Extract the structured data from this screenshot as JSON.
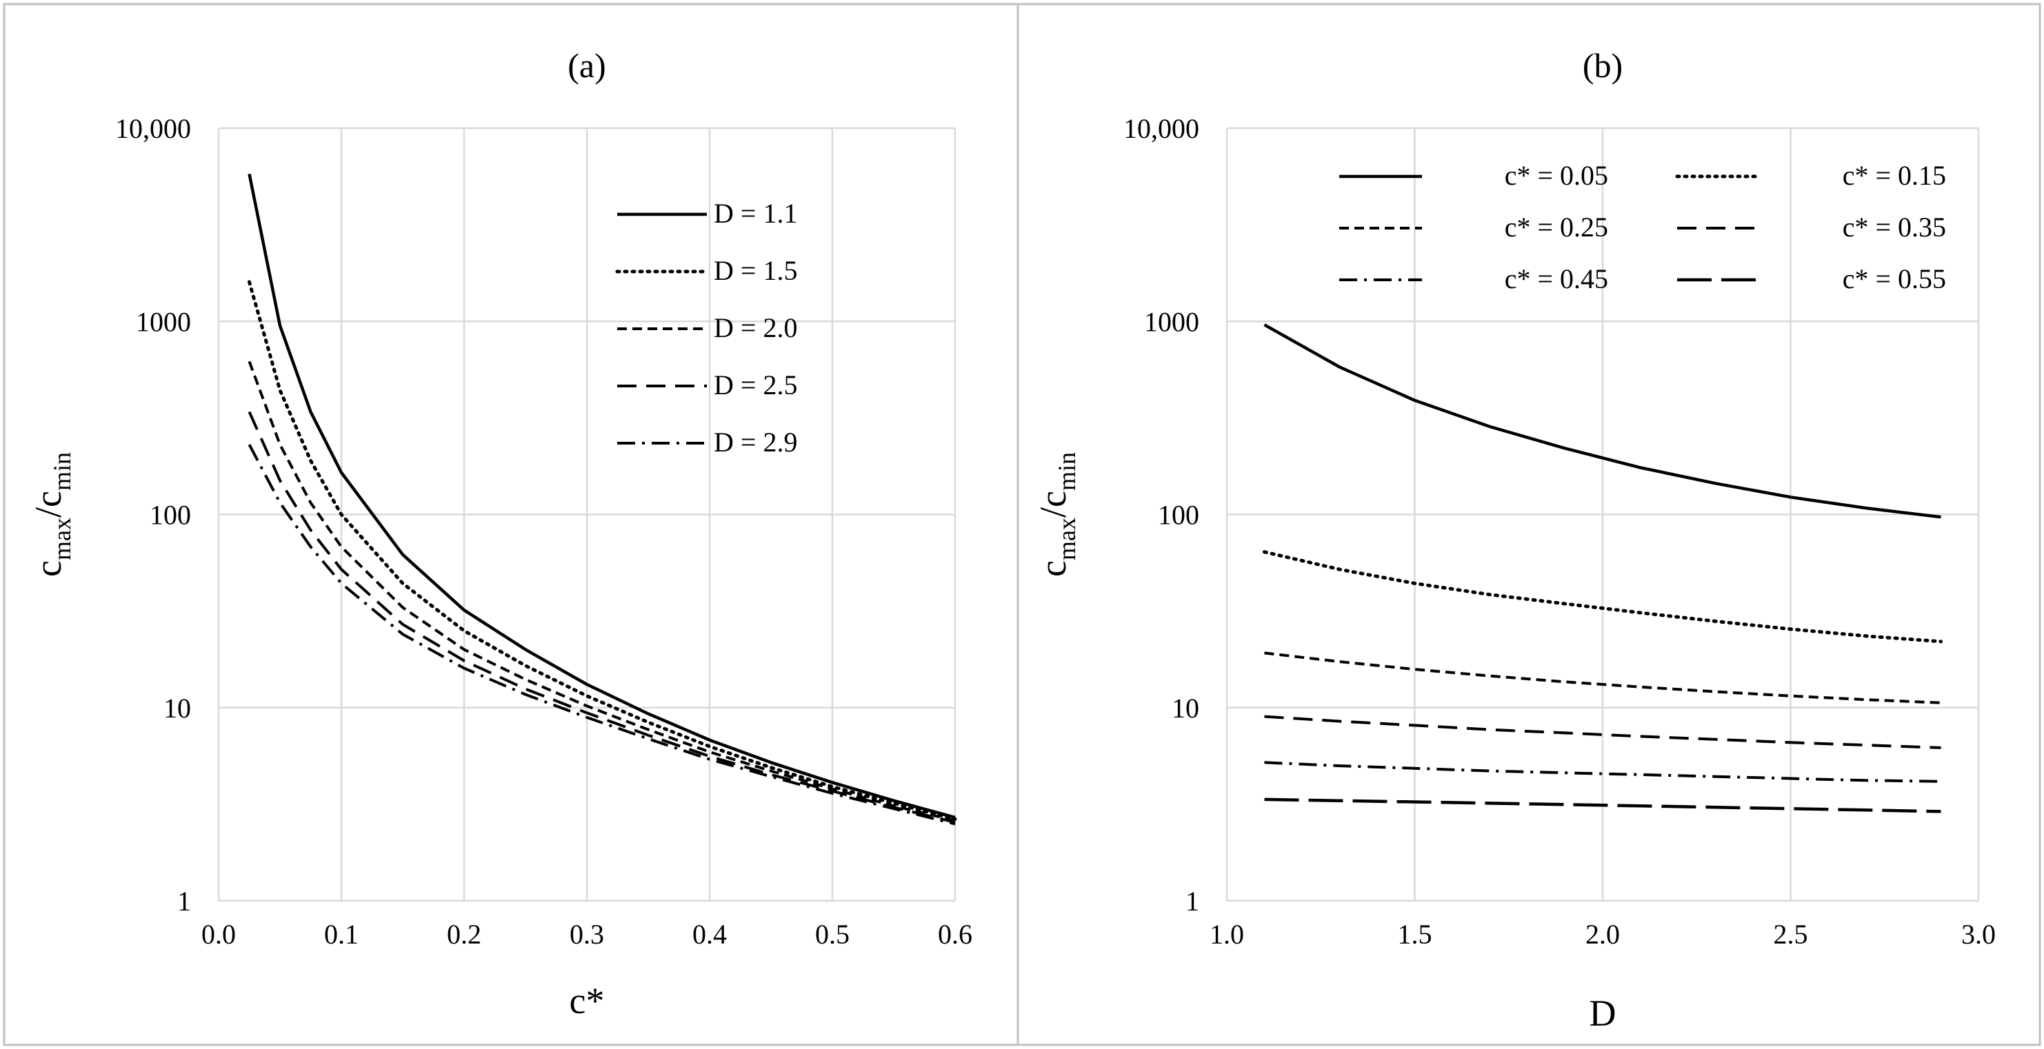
{
  "chart_data": [
    {
      "type": "line",
      "title": "(a)",
      "xlabel": "c*",
      "ylabel": {
        "base": "c",
        "sub1": "max",
        "slash": "/",
        "base2": "c",
        "sub2": "min"
      },
      "xscale": "linear",
      "yscale": "log",
      "xlim": [
        0.0,
        0.6
      ],
      "ylim": [
        1,
        10000
      ],
      "xticks": [
        "0.0",
        "0.1",
        "0.2",
        "0.3",
        "0.4",
        "0.5",
        "0.6"
      ],
      "yticks": [
        "1",
        "10",
        "100",
        "1000",
        "10,000"
      ],
      "grid": true,
      "legend_position": "top-right",
      "x": [
        0.025,
        0.05,
        0.075,
        0.1,
        0.15,
        0.2,
        0.25,
        0.3,
        0.35,
        0.4,
        0.45,
        0.5,
        0.55,
        0.6
      ],
      "series": [
        {
          "name": "D = 1.1",
          "style": "solid",
          "values": [
            5800,
            950,
            340,
            165,
            62,
            32,
            20,
            13.2,
            9.3,
            6.8,
            5.2,
            4.1,
            3.3,
            2.7
          ]
        },
        {
          "name": "D = 1.5",
          "style": "dotted",
          "values": [
            1600,
            440,
            190,
            100,
            44,
            25,
            16.5,
            11.5,
            8.4,
            6.3,
            4.9,
            3.9,
            3.2,
            2.65
          ]
        },
        {
          "name": "D = 2.0",
          "style": "dashed",
          "values": [
            620,
            230,
            115,
            68,
            33,
            20,
            14,
            10.2,
            7.7,
            5.9,
            4.7,
            3.8,
            3.1,
            2.6
          ]
        },
        {
          "name": "D = 2.5",
          "style": "longdash",
          "values": [
            340,
            150,
            83,
            52,
            27,
            17.5,
            12.5,
            9.4,
            7.2,
            5.6,
            4.5,
            3.7,
            3.05,
            2.55
          ]
        },
        {
          "name": "D = 2.9",
          "style": "dashdot",
          "values": [
            230,
            115,
            68,
            44,
            24,
            16,
            11.7,
            8.9,
            6.9,
            5.4,
            4.4,
            3.6,
            3.0,
            2.5
          ]
        }
      ]
    },
    {
      "type": "line",
      "title": "(b)",
      "xlabel": "D",
      "ylabel": {
        "base": "c",
        "sub1": "max",
        "slash": "/",
        "base2": "c",
        "sub2": "min"
      },
      "xscale": "linear",
      "yscale": "log",
      "xlim": [
        1.0,
        3.0
      ],
      "ylim": [
        1,
        10000
      ],
      "xticks": [
        "1.0",
        "1.5",
        "2.0",
        "2.5",
        "3.0"
      ],
      "yticks": [
        "1",
        "10",
        "100",
        "1000",
        "10,000"
      ],
      "grid": true,
      "legend_position": "top",
      "x": [
        1.1,
        1.3,
        1.5,
        1.7,
        1.9,
        2.1,
        2.3,
        2.5,
        2.7,
        2.9
      ],
      "series": [
        {
          "name": "c* = 0.05",
          "style": "solid",
          "values": [
            960,
            580,
            390,
            285,
            220,
            175,
            145,
            123,
            108,
            97
          ]
        },
        {
          "name": "c* = 0.15",
          "style": "dotted",
          "values": [
            64,
            52,
            44,
            38.5,
            34.5,
            31,
            28,
            25.5,
            23.5,
            22
          ]
        },
        {
          "name": "c* = 0.25",
          "style": "dashed",
          "values": [
            19.2,
            17.3,
            15.8,
            14.6,
            13.6,
            12.8,
            12.1,
            11.5,
            11.0,
            10.6
          ]
        },
        {
          "name": "c* = 0.35",
          "style": "longdash",
          "values": [
            9.0,
            8.5,
            8.1,
            7.7,
            7.4,
            7.1,
            6.85,
            6.6,
            6.4,
            6.2
          ]
        },
        {
          "name": "c* = 0.45",
          "style": "dashdot",
          "values": [
            5.2,
            5.0,
            4.85,
            4.7,
            4.6,
            4.5,
            4.4,
            4.3,
            4.2,
            4.15
          ]
        },
        {
          "name": "c* = 0.55",
          "style": "xlongdash",
          "values": [
            3.35,
            3.3,
            3.25,
            3.2,
            3.15,
            3.1,
            3.05,
            3.0,
            2.95,
            2.9
          ]
        }
      ]
    }
  ]
}
